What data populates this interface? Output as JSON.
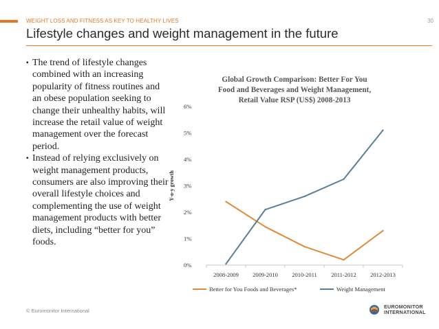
{
  "header": {
    "eyebrow": "WEIGHT LOSS AND FITNESS AS KEY TO HEALTHY LIVES",
    "page_number": "30",
    "title": "Lifestyle changes and weight management in the future",
    "accent_color": "#e87722"
  },
  "bullets": [
    {
      "icon": "square-bullet-icon",
      "text": "The trend of lifestyle changes combined with an increasing popularity of fitness routines and an obese population seeking to change their unhealthy habits, will increase the retail value of weight management over the forecast period."
    },
    {
      "icon": "square-bullet-icon",
      "text": "Instead of relying exclusively on weight management products, consumers are also improving their overall lifestyle choices and complementing the use of weight management products with better diets, including “better for you” foods."
    }
  ],
  "footer": {
    "copyright": "© Euromonitor International",
    "logo_line1": "EUROMONITOR",
    "logo_line2": "INTERNATIONAL"
  },
  "chart_data": {
    "type": "line",
    "title_lines": [
      "Global Growth Comparison: Better For You",
      "Food and Beverages and Weight Management,",
      "Retail Value RSP (US$) 2008-2013"
    ],
    "ylabel": "Y-o-y growth",
    "xlabel": "",
    "categories": [
      "2008-2009",
      "2009-2010",
      "2010-2011",
      "2011-2012",
      "2012-2013"
    ],
    "ylim": [
      0,
      6
    ],
    "yticks": [
      "0%",
      "1%",
      "2%",
      "3%",
      "4%",
      "5%",
      "6%"
    ],
    "grid": false,
    "legend_position": "bottom",
    "series": [
      {
        "name": "Better for You Foods and Beverages*",
        "color": "#e08a3c",
        "values": [
          2.4,
          1.45,
          0.7,
          0.2,
          1.3
        ]
      },
      {
        "name": "Weight Management",
        "color": "#587f99",
        "values": [
          0.05,
          2.1,
          2.6,
          3.25,
          5.1
        ]
      }
    ]
  }
}
